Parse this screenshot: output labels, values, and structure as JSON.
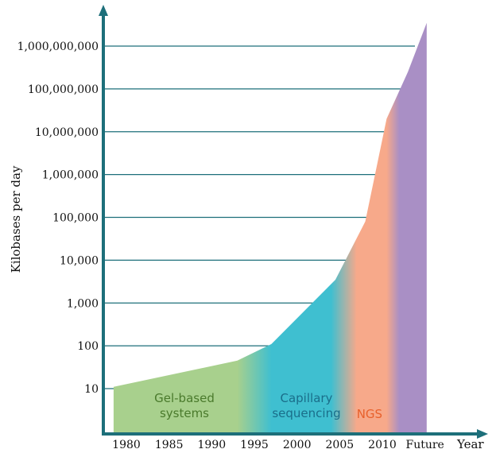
{
  "chart_data": {
    "type": "area",
    "ylabel": "Kilobases per day",
    "xlabel": "Year",
    "yscale": "log",
    "ylim": [
      1,
      10000000000
    ],
    "y_ticks": [
      {
        "value": 10,
        "label": "10"
      },
      {
        "value": 100,
        "label": "100"
      },
      {
        "value": 1000,
        "label": "1,000"
      },
      {
        "value": 10000,
        "label": "10,000"
      },
      {
        "value": 100000,
        "label": "100,000"
      },
      {
        "value": 1000000,
        "label": "1,000,000"
      },
      {
        "value": 10000000,
        "label": "10,000,000"
      },
      {
        "value": 100000000,
        "label": "100,000,000"
      },
      {
        "value": 1000000000,
        "label": "1,000,000,000"
      }
    ],
    "x_ticks": [
      {
        "value": 1980,
        "label": "1980"
      },
      {
        "value": 1985,
        "label": "1985"
      },
      {
        "value": 1990,
        "label": "1990"
      },
      {
        "value": 1995,
        "label": "1995"
      },
      {
        "value": 2000,
        "label": "2000"
      },
      {
        "value": 2005,
        "label": "2005"
      },
      {
        "value": 2010,
        "label": "2010"
      },
      {
        "value": 2015,
        "label": "Future"
      }
    ],
    "xlim": [
      1978.5,
      2022
    ],
    "grid": true,
    "series": [
      {
        "x": 1978.5,
        "y": 11
      },
      {
        "x": 1993,
        "y": 45
      },
      {
        "x": 1997,
        "y": 110
      },
      {
        "x": 2004.5,
        "y": 3500
      },
      {
        "x": 2008,
        "y": 80000
      },
      {
        "x": 2010.5,
        "y": 20000000
      },
      {
        "x": 2013,
        "y": 250000000
      },
      {
        "x": 2015.2,
        "y": 3500000000
      }
    ],
    "eras": [
      {
        "label": "Gel-based systems",
        "lines": [
          "Gel-based",
          "systems"
        ],
        "from": 1978.5,
        "to": 1993,
        "color": "#a8d08d",
        "text_color": "#4a7a2c"
      },
      {
        "label": "Capillary sequencing",
        "lines": [
          "Capillary",
          "sequencing"
        ],
        "from": 1997,
        "to": 2004,
        "color": "#3fbfd0",
        "text_color": "#1a6e8a"
      },
      {
        "label": "NGS",
        "lines": [
          "NGS"
        ],
        "from": 2007,
        "to": 2010.5,
        "color": "#f7a98a",
        "text_color": "#e8612c"
      },
      {
        "label": "Future",
        "lines": [],
        "from": 2012,
        "to": 2015.2,
        "color": "#a98fc5",
        "text_color": "#7a5aa0"
      }
    ]
  }
}
